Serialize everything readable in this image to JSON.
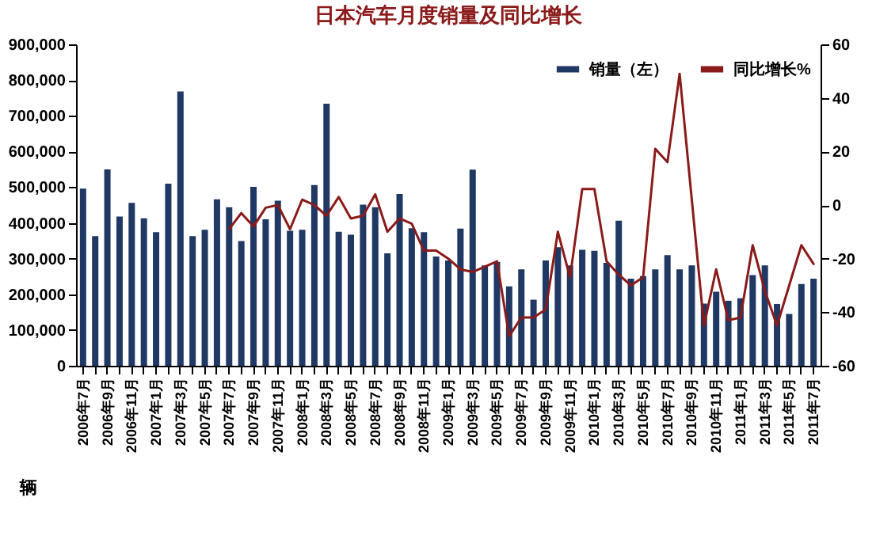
{
  "chart_data": {
    "type": "bar",
    "title": "日本汽车月度销量及同比增长",
    "ylabel": "辆",
    "categories": [
      "2006年7月",
      null,
      "2006年9月",
      null,
      "2006年11月",
      null,
      "2007年1月",
      null,
      "2007年3月",
      null,
      "2007年5月",
      null,
      "2007年7月",
      null,
      "2007年9月",
      null,
      "2007年11月",
      null,
      "2008年1月",
      null,
      "2008年3月",
      null,
      "2008年5月",
      null,
      "2008年7月",
      null,
      "2008年9月",
      null,
      "2008年11月",
      null,
      "2009年1月",
      null,
      "2009年3月",
      null,
      "2009年5月",
      null,
      "2009年7月",
      null,
      "2009年9月",
      null,
      "2009年11月",
      null,
      "2010年1月",
      null,
      "2010年3月",
      null,
      "2010年5月",
      null,
      "2010年7月",
      null,
      "2010年9月",
      null,
      "2010年11月",
      null,
      "2011年1月",
      null,
      "2011年3月",
      null,
      "2011年5月",
      null,
      "2011年7月"
    ],
    "series": [
      {
        "name": "销量（左）",
        "color": "#1f3864",
        "values": [
          496000,
          363000,
          550000,
          418000,
          456000,
          413000,
          374000,
          510000,
          768000,
          363000,
          381000,
          466000,
          444000,
          349000,
          501000,
          410000,
          462000,
          378000,
          381000,
          506000,
          734000,
          375000,
          367000,
          451000,
          444000,
          315000,
          481000,
          385000,
          374000,
          306000,
          295000,
          384000,
          549000,
          281000,
          291000,
          222000,
          270000,
          185000,
          295000,
          332000,
          281000,
          325000,
          322000,
          288000,
          406000,
          244000,
          251000,
          270000,
          310000,
          270000,
          281000,
          174000,
          207000,
          182000,
          189000,
          254000,
          281000,
          173000,
          145000,
          229000,
          244000
        ]
      },
      {
        "name": "同比增长%",
        "type": "line",
        "axis": "y2",
        "color": "#8b1a1a",
        "values": [
          null,
          null,
          null,
          null,
          null,
          null,
          null,
          null,
          null,
          null,
          null,
          null,
          -9,
          -3,
          -8,
          -1,
          0,
          -9,
          2,
          0,
          -4,
          3,
          -5,
          -4,
          4,
          -10,
          -5,
          -7,
          -17,
          -17,
          -20,
          -24,
          -25,
          -23,
          -21,
          -49,
          -42,
          -42,
          -39,
          -10,
          -27,
          6,
          6,
          -21,
          -26,
          -30,
          -27,
          21,
          16,
          49,
          2,
          -45,
          -24,
          -43,
          -42,
          -15,
          -32,
          -45,
          -30,
          -15,
          -22
        ]
      }
    ],
    "ylim": [
      0,
      900000
    ],
    "yticks": [
      0,
      {
        "value": 100000,
        "label": "100,000"
      },
      {
        "value": 200000,
        "label": "200,000"
      },
      {
        "value": 300000,
        "label": "300,000"
      },
      {
        "value": 400000,
        "label": "400,000"
      },
      {
        "value": 500000,
        "label": "500,000"
      },
      {
        "value": 600000,
        "label": "600,000"
      },
      {
        "value": 700000,
        "label": "700,000"
      },
      {
        "value": 800000,
        "label": "800,000"
      },
      {
        "value": 900000,
        "label": "900,000"
      }
    ],
    "y2lim": [
      -60,
      60
    ],
    "y2ticks": [
      -60,
      -40,
      -20,
      0,
      20,
      40,
      60
    ],
    "legend": "top right",
    "grid": false
  }
}
